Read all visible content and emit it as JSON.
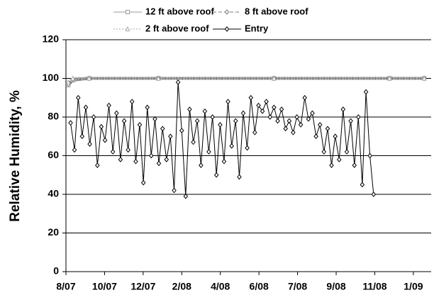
{
  "chart_data": {
    "type": "line",
    "y_label": "Relative Humidity, %",
    "xlim": [
      2007.6,
      2009.18
    ],
    "xticks": [
      {
        "value": 2007.6,
        "label": "8/07"
      },
      {
        "value": 2007.767,
        "label": "10/07"
      },
      {
        "value": 2007.934,
        "label": "12/07"
      },
      {
        "value": 2008.101,
        "label": "2/08"
      },
      {
        "value": 2008.268,
        "label": "4/08"
      },
      {
        "value": 2008.435,
        "label": "6/08"
      },
      {
        "value": 2008.602,
        "label": "7/08"
      },
      {
        "value": 2008.769,
        "label": "9/08"
      },
      {
        "value": 2008.936,
        "label": "11/08"
      },
      {
        "value": 2009.103,
        "label": "1/09"
      }
    ],
    "ylim": [
      0,
      120
    ],
    "yticks": [
      0,
      20,
      40,
      60,
      80,
      100,
      120
    ],
    "grid": true,
    "legend": "top",
    "series": [
      {
        "name": "12 ft above roof",
        "color": "#9a9a9a",
        "marker": "square",
        "dash": "solid",
        "x": [
          2007.61,
          2007.63,
          2007.7,
          2008.0,
          2008.5,
          2009.0,
          2009.15
        ],
        "values": [
          96.5,
          99,
          100,
          100,
          100,
          100,
          100
        ]
      },
      {
        "name": "8 ft above roof",
        "color": "#7a7a7a",
        "marker": "diamond",
        "dash": "dashed",
        "x": [
          2007.61,
          2007.63,
          2007.7,
          2008.0,
          2008.5,
          2009.0,
          2009.15
        ],
        "values": [
          97,
          99.5,
          100,
          100,
          100,
          100,
          100
        ]
      },
      {
        "name": "2 ft above roof",
        "color": "#a8a8a8",
        "marker": "triangle",
        "dash": "dotted",
        "x": [
          2007.61,
          2007.63,
          2007.7,
          2008.0,
          2008.5,
          2009.0,
          2009.15
        ],
        "values": [
          98,
          100,
          100,
          100,
          100,
          100,
          100
        ]
      },
      {
        "name": "Entry",
        "color": "#000000",
        "marker": "diamond",
        "dash": "solid",
        "x": [
          2007.62,
          2007.637,
          2007.653,
          2007.67,
          2007.686,
          2007.703,
          2007.72,
          2007.736,
          2007.753,
          2007.769,
          2007.786,
          2007.803,
          2007.819,
          2007.836,
          2007.852,
          2007.869,
          2007.886,
          2007.902,
          2007.919,
          2007.935,
          2007.952,
          2007.969,
          2007.985,
          2008.002,
          2008.018,
          2008.035,
          2008.052,
          2008.068,
          2008.085,
          2008.101,
          2008.118,
          2008.135,
          2008.151,
          2008.168,
          2008.184,
          2008.201,
          2008.218,
          2008.234,
          2008.251,
          2008.267,
          2008.284,
          2008.301,
          2008.317,
          2008.334,
          2008.35,
          2008.367,
          2008.384,
          2008.4,
          2008.417,
          2008.433,
          2008.45,
          2008.467,
          2008.483,
          2008.5,
          2008.516,
          2008.533,
          2008.55,
          2008.566,
          2008.583,
          2008.599,
          2008.616,
          2008.633,
          2008.649,
          2008.666,
          2008.682,
          2008.699,
          2008.716,
          2008.732,
          2008.749,
          2008.765,
          2008.782,
          2008.799,
          2008.815,
          2008.832,
          2008.848,
          2008.865,
          2008.882,
          2008.898,
          2008.915,
          2008.931
        ],
        "values": [
          77,
          63,
          90,
          70,
          85,
          66,
          80,
          55,
          75,
          68,
          86,
          62,
          82,
          58,
          78,
          63,
          88,
          57,
          76,
          46,
          85,
          60,
          79,
          56,
          74,
          58,
          70,
          42,
          98,
          73,
          39,
          84,
          67,
          78,
          55,
          83,
          62,
          80,
          50,
          76,
          57,
          88,
          65,
          78,
          49,
          82,
          64,
          90,
          72,
          86,
          83,
          88,
          80,
          85,
          78,
          84,
          74,
          78,
          72,
          80,
          76,
          90,
          79,
          82,
          70,
          76,
          62,
          74,
          55,
          70,
          58,
          84,
          62,
          78,
          55,
          80,
          45,
          93,
          60,
          40
        ]
      }
    ]
  }
}
